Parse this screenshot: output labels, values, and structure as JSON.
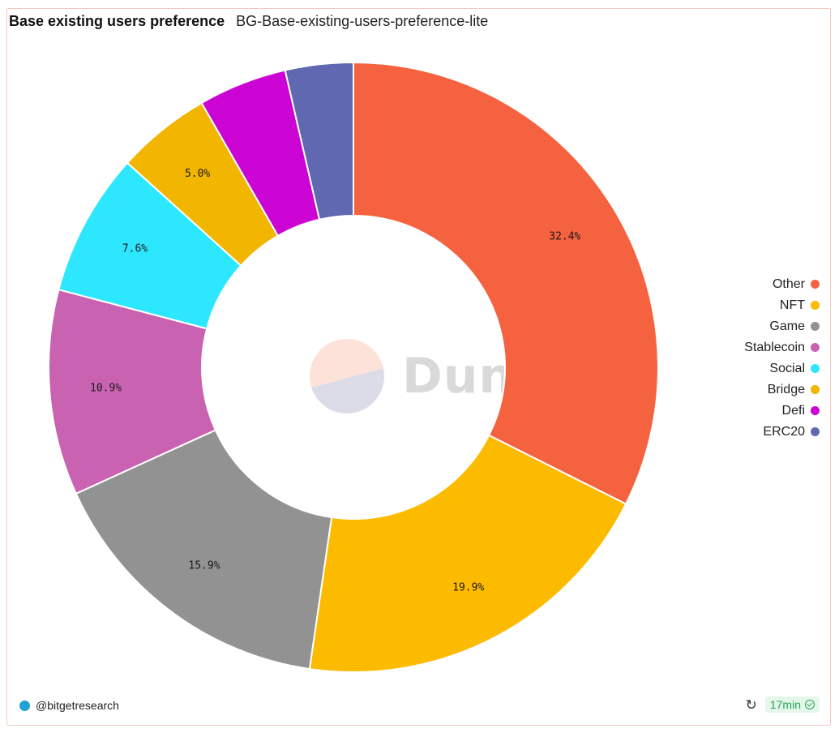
{
  "header": {
    "title": "Base existing users preference",
    "subtitle": "BG-Base-existing-users-preference-lite"
  },
  "watermark": {
    "text": "Dune"
  },
  "footer": {
    "author": "@bitgetresearch",
    "refresh_icon": "refresh-icon",
    "age": "17min",
    "status_icon": "check-circle-icon",
    "status_color": "#27a355"
  },
  "chart_data": {
    "type": "pie",
    "style": "donut",
    "categories": [
      "Other",
      "NFT",
      "Game",
      "Stablecoin",
      "Social",
      "Bridge",
      "Defi",
      "ERC20"
    ],
    "values": [
      32.4,
      19.9,
      15.9,
      10.9,
      7.6,
      5.0,
      4.7,
      3.6
    ],
    "labels": [
      "32.4%",
      "19.9%",
      "15.9%",
      "10.9%",
      "7.6%",
      "5.0%",
      "",
      ""
    ],
    "colors": [
      "#f5623f",
      "#fdbb00",
      "#929292",
      "#c962b1",
      "#2de7ff",
      "#f2b500",
      "#cc04d3",
      "#5f68b1"
    ],
    "legend_position": "right"
  }
}
